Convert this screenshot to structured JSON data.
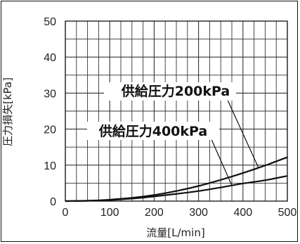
{
  "chart_data": {
    "type": "line",
    "xlabel": "流量[L/min]",
    "ylabel": "圧力損失[kPa]",
    "xlim": [
      0,
      500
    ],
    "ylim": [
      0,
      50
    ],
    "xticks": [
      0,
      100,
      200,
      300,
      400,
      500
    ],
    "yticks": [
      0,
      10,
      20,
      30,
      40,
      50
    ],
    "grid": true,
    "series": [
      {
        "name": "供給圧力200kPa",
        "x": [
          0,
          50,
          100,
          150,
          200,
          250,
          300,
          350,
          400,
          450,
          500
        ],
        "y": [
          0,
          0.1,
          0.4,
          0.9,
          1.7,
          2.8,
          4.2,
          5.9,
          7.8,
          9.9,
          12.2
        ]
      },
      {
        "name": "供給圧力400kPa",
        "x": [
          0,
          50,
          100,
          150,
          200,
          250,
          300,
          350,
          400,
          450,
          500
        ],
        "y": [
          0,
          0.1,
          0.3,
          0.7,
          1.3,
          2.0,
          2.8,
          3.8,
          4.9,
          5.8,
          7.0
        ]
      }
    ],
    "annotations": [
      {
        "text": "供給圧力200kPa",
        "series": 0
      },
      {
        "text": "供給圧力400kPa",
        "series": 1
      }
    ],
    "colors": {
      "line": "#111111",
      "grid": "#333333",
      "background": "#ffffff"
    }
  }
}
